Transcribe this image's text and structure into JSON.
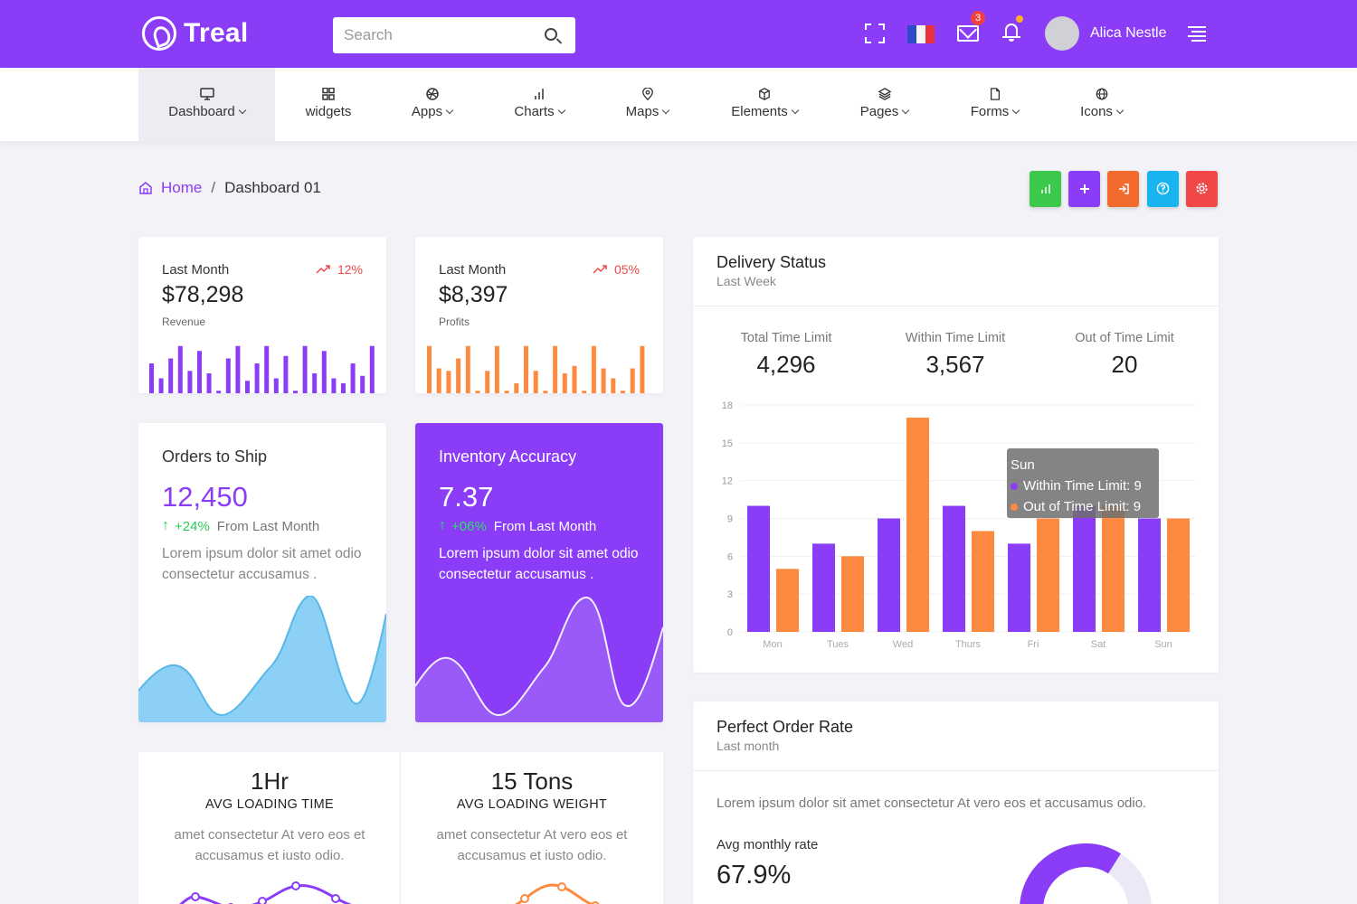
{
  "app": {
    "name": "Treal"
  },
  "header": {
    "search_placeholder": "Search",
    "mail_badge": "3",
    "user_name": "Alica Nestle"
  },
  "nav": {
    "items": [
      {
        "label": "Dashboard",
        "icon": "monitor-icon",
        "dropdown": true,
        "active": true
      },
      {
        "label": "widgets",
        "icon": "grid-icon",
        "dropdown": false
      },
      {
        "label": "Apps",
        "icon": "aperture-icon",
        "dropdown": true
      },
      {
        "label": "Charts",
        "icon": "bar-chart-icon",
        "dropdown": true
      },
      {
        "label": "Maps",
        "icon": "map-pin-icon",
        "dropdown": true
      },
      {
        "label": "Elements",
        "icon": "box-icon",
        "dropdown": true
      },
      {
        "label": "Pages",
        "icon": "layers-icon",
        "dropdown": true
      },
      {
        "label": "Forms",
        "icon": "file-icon",
        "dropdown": true
      },
      {
        "label": "Icons",
        "icon": "globe-icon",
        "dropdown": true
      }
    ]
  },
  "breadcrumb": {
    "home": "Home",
    "separator": "/",
    "current": "Dashboard 01"
  },
  "quick_buttons": [
    {
      "icon": "bar-chart-icon",
      "color": "#3cc84a"
    },
    {
      "icon": "plus-icon",
      "color": "#8b3cf7"
    },
    {
      "icon": "sign-in-icon",
      "color": "#f26b2d"
    },
    {
      "icon": "help-circle-icon",
      "color": "#18b4f0"
    },
    {
      "icon": "settings-icon",
      "color": "#f04848"
    }
  ],
  "revenue_card": {
    "label": "Last Month",
    "trend": "12%",
    "value": "$78,298",
    "sub": "Revenue"
  },
  "profits_card": {
    "label": "Last Month",
    "trend": "05%",
    "value": "$8,397",
    "sub": "Profits"
  },
  "orders_card": {
    "title": "Orders to Ship",
    "value": "12,450",
    "growth": "+24%",
    "growth_text": "From Last Month",
    "desc": "Lorem ipsum dolor sit amet odio consectetur accusamus ."
  },
  "inventory_card": {
    "title": "Inventory Accuracy",
    "value": "7.37",
    "growth": "+06%",
    "growth_text": "From Last Month",
    "desc": "Lorem ipsum dolor sit amet odio consectetur accusamus ."
  },
  "loading_time": {
    "value": "1Hr",
    "label": "AVG LOADING TIME",
    "desc": "amet consectetur At vero eos et accusamus et iusto odio."
  },
  "loading_weight": {
    "value": "15 Tons",
    "label": "AVG LOADING WEIGHT",
    "desc": "amet consectetur At vero eos et accusamus et iusto odio."
  },
  "delivery": {
    "title": "Delivery Status",
    "subtitle": "Last Week",
    "metrics": [
      {
        "label": "Total Time Limit",
        "value": "4,296"
      },
      {
        "label": "Within Time Limit",
        "value": "3,567"
      },
      {
        "label": "Out of Time Limit",
        "value": "20"
      }
    ],
    "tooltip": {
      "title": "Sun",
      "line1": "Within Time Limit: 9",
      "line2": "Out of Time Limit: 9"
    }
  },
  "perfect_order": {
    "title": "Perfect Order Rate",
    "subtitle": "Last month",
    "desc": "Lorem ipsum dolor sit amet consectetur At vero eos et accusamus odio.",
    "rate_label": "Avg monthly rate",
    "rate_value": "67.9%",
    "gauge_value": 0.679
  },
  "colors": {
    "primary": "#8b3cf7",
    "orange": "#fd8a3e",
    "green": "#2ec95a",
    "sky": "#6cc6f2"
  },
  "chart_data": {
    "type": "bar",
    "categories": [
      "Mon",
      "Tues",
      "Wed",
      "Thurs",
      "Fri",
      "Sat",
      "Sun"
    ],
    "series": [
      {
        "name": "Within Time Limit",
        "values": [
          10,
          7,
          9,
          10,
          7,
          10,
          9
        ],
        "color": "#8b3cf7"
      },
      {
        "name": "Out of Time Limit",
        "values": [
          5,
          6,
          17,
          8,
          9,
          10,
          9
        ],
        "color": "#fd8a3e"
      }
    ],
    "yticks": [
      0,
      3,
      6,
      9,
      12,
      15,
      18
    ],
    "ylim": [
      0,
      18
    ],
    "grid": true
  },
  "mini_charts": {
    "revenue_bars": [
      0.6,
      0.3,
      0.7,
      0.95,
      0.45,
      0.85,
      0.4,
      0.05,
      0.7,
      0.95,
      0.25,
      0.6,
      0.95,
      0.3,
      0.75,
      0.05,
      0.95,
      0.4,
      0.85,
      0.3,
      0.2,
      0.6,
      0.35,
      0.95
    ],
    "profit_bars": [
      0.95,
      0.5,
      0.45,
      0.7,
      0.95,
      0.05,
      0.45,
      0.95,
      0.05,
      0.2,
      0.95,
      0.45,
      0.05,
      0.95,
      0.4,
      0.55,
      0.05,
      0.95,
      0.5,
      0.3,
      0.05,
      0.5,
      0.95
    ]
  }
}
